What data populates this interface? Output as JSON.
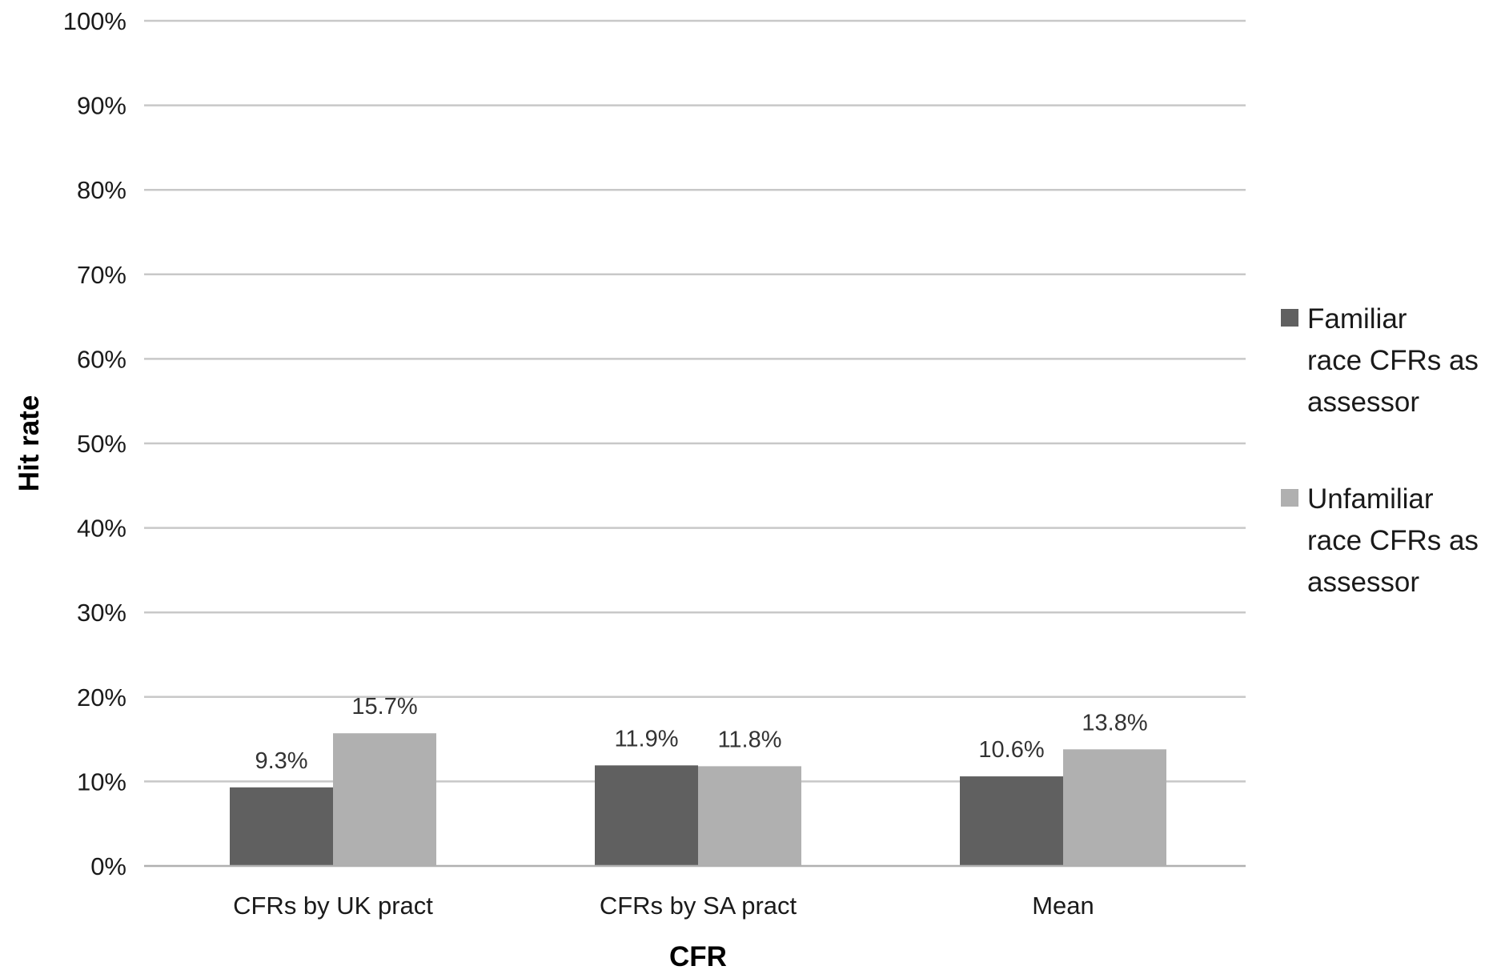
{
  "chart_data": {
    "type": "bar",
    "title": "",
    "xlabel": "CFR",
    "ylabel": "Hit rate",
    "ylim": [
      0,
      100
    ],
    "yticks": [
      "0%",
      "10%",
      "20%",
      "30%",
      "40%",
      "50%",
      "60%",
      "70%",
      "80%",
      "90%",
      "100%"
    ],
    "grid": true,
    "legend_position": "right",
    "categories": [
      "CFRs by UK pract",
      "CFRs by SA pract",
      "Mean"
    ],
    "series": [
      {
        "name": "Familiar race CFRs as assessor",
        "legend_lines": [
          "Familiar",
          "race CFRs as",
          "assessor"
        ],
        "color": "#606060",
        "values": [
          9.3,
          11.9,
          10.6
        ],
        "labels": [
          "9.3%",
          "11.9%",
          "10.6%"
        ]
      },
      {
        "name": "Unfamiliar race CFRs as assessor",
        "legend_lines": [
          "Unfamiliar",
          "race CFRs as",
          "assessor"
        ],
        "color": "#b0b0b0",
        "values": [
          15.7,
          11.8,
          13.8
        ],
        "labels": [
          "15.7%",
          "11.8%",
          "13.8%"
        ]
      }
    ]
  }
}
